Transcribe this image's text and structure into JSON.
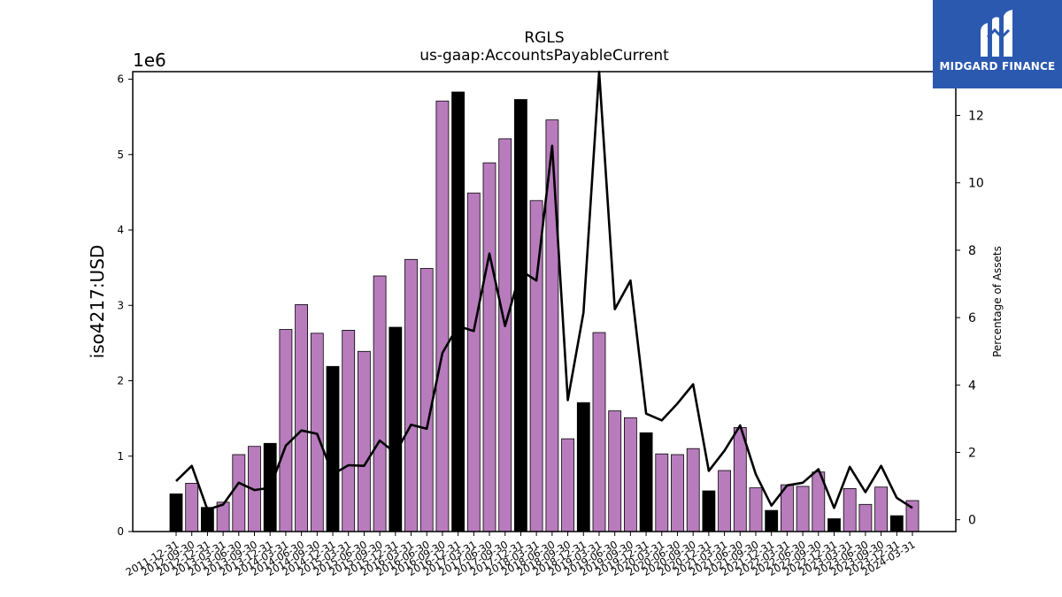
{
  "chart_data": {
    "type": "bar",
    "title": "RGLS",
    "subtitle": "us-gaap:AccountsPayableCurrent",
    "ylabel": "iso4217:USD",
    "y_multiplier_label": "1e6",
    "y2label": "Percentage of Assets",
    "ylim": [
      0,
      6.1
    ],
    "y2lim": [
      -0.35,
      13.3
    ],
    "yticks": [
      "0",
      "1",
      "2",
      "3",
      "4",
      "5",
      "6"
    ],
    "y2ticks": [
      "0",
      "2",
      "4",
      "6",
      "8",
      "10",
      "12"
    ],
    "x_tick_labels": [
      "2011-12-31",
      "2012-09-30",
      "2012-12-31",
      "2013-03-31",
      "2013-06-30",
      "2013-09-30",
      "2013-12-31",
      "2014-03-31",
      "2014-06-30",
      "2014-09-30",
      "2014-12-31",
      "2015-03-31",
      "2015-06-30",
      "2015-09-30",
      "2015-12-31",
      "2016-03-31",
      "2016-06-30",
      "2016-09-30",
      "2016-12-31",
      "2017-03-31",
      "2017-06-30",
      "2017-09-30",
      "2017-12-31",
      "2018-03-31",
      "2018-06-30",
      "2018-09-30",
      "2018-12-31",
      "2019-03-31",
      "2019-06-30",
      "2019-09-30",
      "2019-12-31",
      "2020-03-31",
      "2020-06-30",
      "2020-09-30",
      "2020-12-31",
      "2021-03-31",
      "2021-06-30",
      "2021-09-30",
      "2021-12-31",
      "2022-03-31",
      "2022-06-30",
      "2022-09-30",
      "2022-12-31",
      "2023-03-31",
      "2023-06-30",
      "2023-09-30",
      "2023-12-31",
      "2024-03-31"
    ],
    "values": [
      0.5,
      0.64,
      0.32,
      0.39,
      1.02,
      1.13,
      1.17,
      2.68,
      3.01,
      2.63,
      2.19,
      2.67,
      2.39,
      3.39,
      2.71,
      3.61,
      3.49,
      5.71,
      5.83,
      4.49,
      4.89,
      5.21,
      5.73,
      4.39,
      5.46,
      1.23,
      1.71,
      2.64,
      1.6,
      1.51,
      1.31,
      1.03,
      1.02,
      1.1,
      0.54,
      0.81,
      1.38,
      0.58,
      0.28,
      0.62,
      0.6,
      0.79,
      0.17,
      0.57,
      0.36,
      0.59,
      0.21,
      0.41
    ],
    "pct_of_assets": [
      1.15,
      1.6,
      0.3,
      0.45,
      1.1,
      0.88,
      0.95,
      2.2,
      2.65,
      2.55,
      1.35,
      1.62,
      1.6,
      2.35,
      1.98,
      2.82,
      2.7,
      4.95,
      5.75,
      5.6,
      7.9,
      5.75,
      7.4,
      7.1,
      11.1,
      3.55,
      6.15,
      13.3,
      6.25,
      7.1,
      3.15,
      2.95,
      3.45,
      4.02,
      1.45,
      2.05,
      2.8,
      1.35,
      0.42,
      1.02,
      1.1,
      1.5,
      0.35,
      1.57,
      0.82,
      1.6,
      0.65,
      0.35
    ],
    "highlight_color": "#000000",
    "bar_color": "#b87cbd",
    "line_color": "#000000",
    "grid": false,
    "legend": "none"
  },
  "logo": {
    "text": "MIDGARD FINANCE",
    "icon": "midgard-logo-icon",
    "background": "#2b59b0"
  }
}
